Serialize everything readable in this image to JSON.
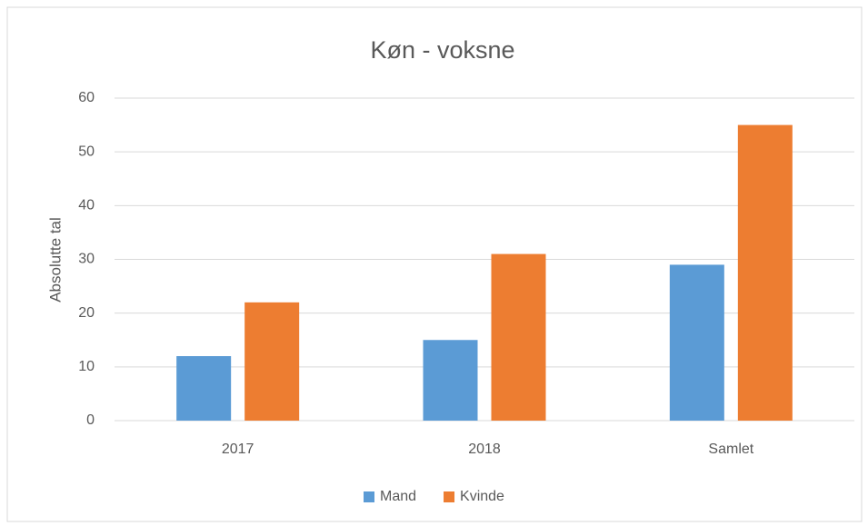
{
  "chart_data": {
    "type": "bar",
    "title": "Køn - voksne",
    "y_label": "Absolutte tal",
    "categories": [
      "2017",
      "2018",
      "Samlet"
    ],
    "series": [
      {
        "name": "Mand",
        "color": "#5b9bd5",
        "values": [
          12,
          15,
          29
        ]
      },
      {
        "name": "Kvinde",
        "color": "#ed7d31",
        "values": [
          22,
          31,
          55
        ]
      }
    ],
    "ylim": [
      0,
      60
    ],
    "yticks": [
      0,
      10,
      20,
      30,
      40,
      50,
      60
    ],
    "grid": true,
    "legend": "bottom"
  }
}
